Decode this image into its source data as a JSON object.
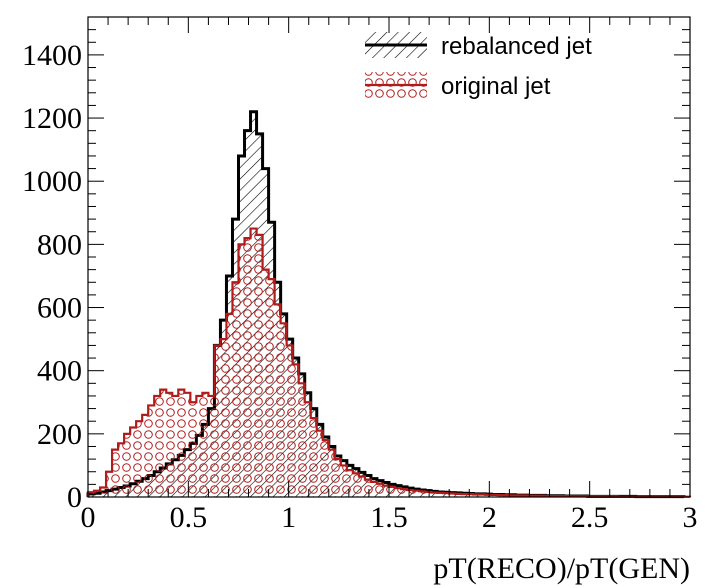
{
  "chart_data": {
    "type": "histogram",
    "title": "",
    "xlabel": "pT(RECO)/pT(GEN)",
    "ylabel": "",
    "xlim": [
      0,
      3
    ],
    "ylim": [
      0,
      1520
    ],
    "grid": false,
    "legend_position": "top-right",
    "x_ticks": [
      0,
      0.5,
      1,
      1.5,
      2,
      2.5,
      3
    ],
    "x_tick_labels": [
      "0",
      "0.5",
      "1",
      "1.5",
      "2",
      "2.5",
      "3"
    ],
    "y_ticks": [
      0,
      200,
      400,
      600,
      800,
      1000,
      1200,
      1400
    ],
    "y_tick_labels": [
      "0",
      "200",
      "400",
      "600",
      "800",
      "1000",
      "1200",
      "1400"
    ],
    "bin_width": 0.03,
    "series": [
      {
        "name": "rebalanced jet",
        "edge_color": "#000000",
        "fill_pattern": "hatch",
        "values": [
          10,
          12,
          16,
          20,
          25,
          30,
          35,
          42,
          50,
          58,
          68,
          80,
          92,
          105,
          118,
          132,
          150,
          170,
          195,
          230,
          280,
          480,
          560,
          700,
          880,
          1080,
          1160,
          1220,
          1150,
          1040,
          870,
          680,
          580,
          500,
          440,
          390,
          330,
          280,
          230,
          190,
          160,
          130,
          115,
          100,
          90,
          78,
          68,
          58,
          52,
          46,
          40,
          36,
          32,
          28,
          25,
          22,
          20,
          18,
          16,
          15,
          14,
          13,
          12,
          11,
          10,
          10,
          9,
          8,
          8,
          7,
          7,
          6,
          6,
          5,
          5,
          5,
          4,
          4,
          4,
          3,
          3,
          3,
          3,
          2,
          2,
          2,
          2,
          2,
          2,
          2,
          2,
          1,
          1,
          1,
          1,
          1,
          1,
          1,
          1
        ]
      },
      {
        "name": "original jet",
        "edge_color": "#b01c1c",
        "fill_pattern": "circles",
        "values": [
          15,
          20,
          30,
          80,
          150,
          170,
          200,
          220,
          240,
          260,
          290,
          320,
          340,
          330,
          320,
          340,
          330,
          300,
          320,
          330,
          320,
          480,
          500,
          580,
          680,
          800,
          820,
          850,
          830,
          720,
          690,
          610,
          550,
          480,
          420,
          360,
          300,
          250,
          210,
          180,
          150,
          120,
          100,
          85,
          75,
          65,
          55,
          48,
          42,
          36,
          32,
          28,
          25,
          22,
          20,
          18,
          16,
          14,
          13,
          12,
          11,
          10,
          9,
          9,
          8,
          8,
          7,
          7,
          6,
          6,
          5,
          5,
          5,
          4,
          4,
          4,
          3,
          3,
          3,
          3,
          2,
          2,
          2,
          2,
          2,
          2,
          2,
          2,
          1,
          1,
          1,
          1,
          1,
          1,
          1,
          1,
          1,
          1,
          1,
          1
        ]
      }
    ]
  }
}
